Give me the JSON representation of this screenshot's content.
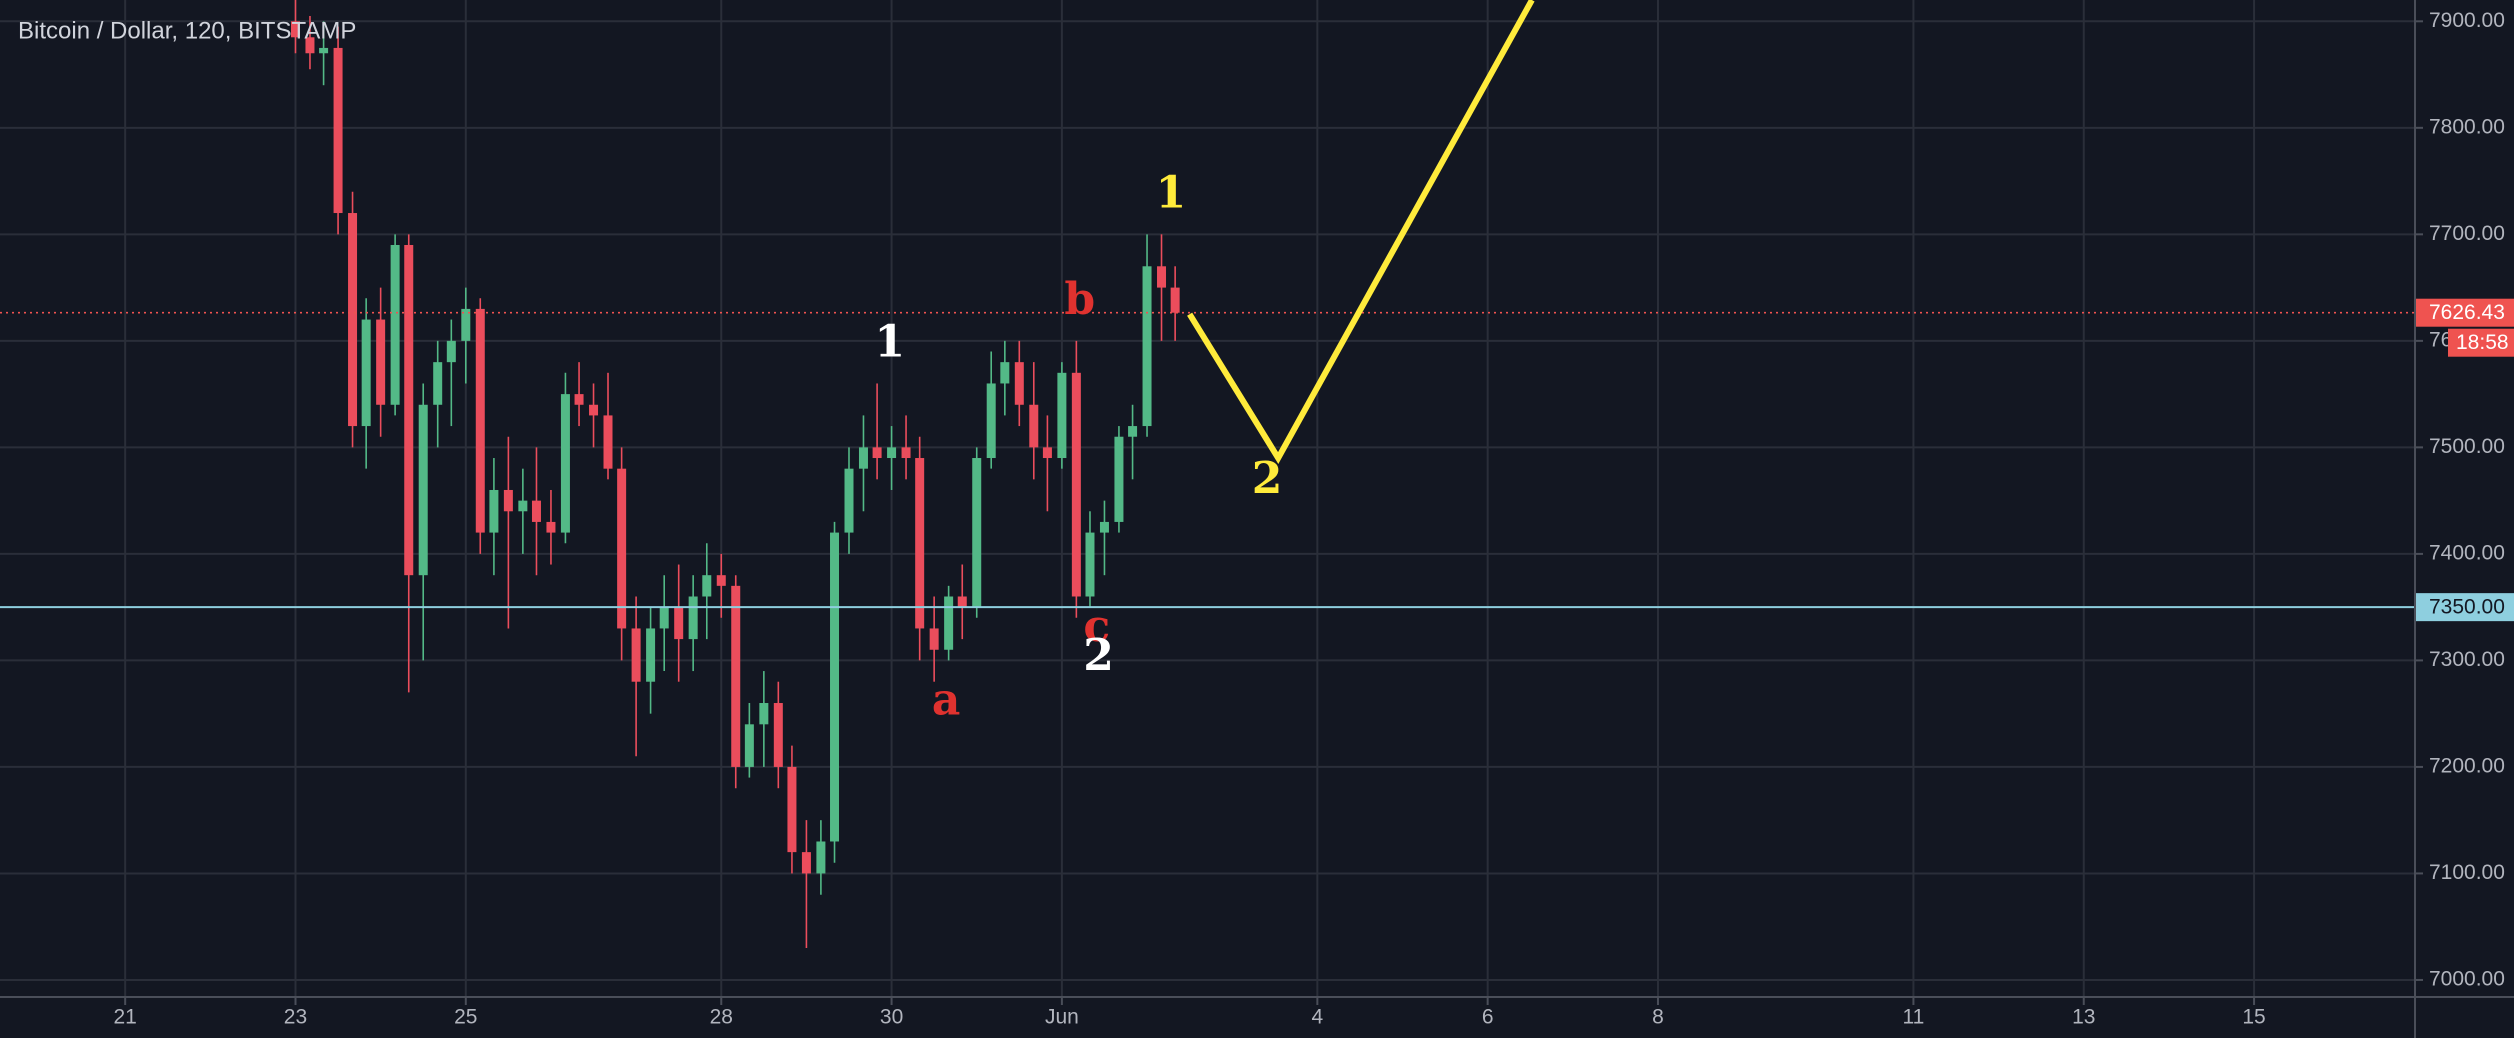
{
  "chart_data": {
    "type": "candlestick",
    "title": "Bitcoin / Dollar, 120, BITSTAMP",
    "up_color": "#53b987",
    "down_color": "#eb4d5c",
    "grid": true,
    "x": [
      23,
      23.17,
      23.33,
      23.5,
      23.67,
      23.83,
      24,
      24.17,
      24.33,
      24.5,
      24.67,
      24.83,
      25,
      25.17,
      25.33,
      25.5,
      25.67,
      25.83,
      26,
      26.17,
      26.33,
      26.5,
      26.67,
      26.83,
      27,
      27.17,
      27.33,
      27.5,
      27.67,
      27.83,
      28,
      28.17,
      28.33,
      28.5,
      28.67,
      28.83,
      29,
      29.17,
      29.33,
      29.5,
      29.67,
      29.83,
      30,
      30.17,
      30.33,
      30.5,
      30.67,
      30.83,
      31,
      31.17,
      31.33,
      31.5,
      31.67,
      31.83,
      32,
      32.17,
      32.33,
      32.5,
      32.67,
      32.83,
      33,
      33.17,
      33.33
    ],
    "open": [
      7900,
      7885,
      7870,
      7875,
      7720,
      7520,
      7620,
      7540,
      7690,
      7380,
      7540,
      7580,
      7600,
      7630,
      7420,
      7460,
      7440,
      7450,
      7430,
      7420,
      7550,
      7540,
      7530,
      7480,
      7330,
      7280,
      7330,
      7350,
      7320,
      7360,
      7380,
      7370,
      7200,
      7240,
      7260,
      7200,
      7120,
      7100,
      7130,
      7420,
      7480,
      7500,
      7490,
      7500,
      7490,
      7330,
      7310,
      7360,
      7350,
      7490,
      7560,
      7580,
      7540,
      7500,
      7490,
      7570,
      7360,
      7420,
      7430,
      7510,
      7520,
      7670,
      7650
    ],
    "high": [
      7935,
      7905,
      7900,
      7895,
      7740,
      7640,
      7650,
      7700,
      7700,
      7560,
      7600,
      7620,
      7650,
      7640,
      7490,
      7510,
      7480,
      7500,
      7460,
      7570,
      7580,
      7560,
      7570,
      7500,
      7360,
      7350,
      7380,
      7390,
      7380,
      7410,
      7400,
      7380,
      7260,
      7290,
      7280,
      7220,
      7150,
      7150,
      7430,
      7500,
      7530,
      7560,
      7520,
      7530,
      7510,
      7360,
      7370,
      7390,
      7500,
      7590,
      7600,
      7600,
      7580,
      7530,
      7580,
      7600,
      7440,
      7450,
      7520,
      7540,
      7700,
      7700,
      7670
    ],
    "low": [
      7870,
      7855,
      7840,
      7700,
      7500,
      7480,
      7510,
      7530,
      7270,
      7300,
      7500,
      7520,
      7560,
      7400,
      7380,
      7330,
      7400,
      7380,
      7390,
      7410,
      7520,
      7500,
      7470,
      7300,
      7210,
      7250,
      7290,
      7280,
      7290,
      7320,
      7340,
      7180,
      7190,
      7200,
      7180,
      7100,
      7030,
      7080,
      7110,
      7400,
      7440,
      7470,
      7460,
      7470,
      7300,
      7280,
      7300,
      7320,
      7340,
      7480,
      7530,
      7520,
      7470,
      7440,
      7480,
      7340,
      7350,
      7380,
      7420,
      7470,
      7510,
      7600,
      7600
    ],
    "close": [
      7885,
      7870,
      7875,
      7720,
      7520,
      7620,
      7540,
      7690,
      7380,
      7540,
      7580,
      7600,
      7630,
      7420,
      7460,
      7440,
      7450,
      7430,
      7420,
      7550,
      7540,
      7530,
      7480,
      7330,
      7280,
      7330,
      7350,
      7320,
      7360,
      7380,
      7370,
      7200,
      7240,
      7260,
      7200,
      7120,
      7100,
      7130,
      7420,
      7480,
      7500,
      7490,
      7500,
      7490,
      7330,
      7310,
      7360,
      7350,
      7490,
      7560,
      7580,
      7540,
      7500,
      7490,
      7570,
      7360,
      7420,
      7430,
      7510,
      7520,
      7670,
      7650,
      7626.43
    ],
    "xlim": [
      19.53,
      47.89
    ],
    "ylim": [
      6984,
      7920
    ],
    "xticks": [
      21,
      23,
      25,
      28,
      30,
      {
        "value": 32,
        "label": "Jun"
      },
      {
        "value": 35,
        "label": "4"
      },
      {
        "value": 37,
        "label": "6"
      },
      {
        "value": 39,
        "label": "8"
      },
      {
        "value": 42,
        "label": "11"
      },
      {
        "value": 44,
        "label": "13"
      },
      {
        "value": 46,
        "label": "15"
      }
    ],
    "yticks": [
      {
        "value": 7000,
        "label": "7000.00"
      },
      {
        "value": 7100,
        "label": "7100.00"
      },
      {
        "value": 7200,
        "label": "7200.00"
      },
      {
        "value": 7300,
        "label": "7300.00"
      },
      {
        "value": 7400,
        "label": "7400.00"
      },
      {
        "value": 7500,
        "label": "7500.00"
      },
      {
        "value": 7600,
        "label": "7600.00"
      },
      {
        "value": 7700,
        "label": "7700.00"
      },
      {
        "value": 7800,
        "label": "7800.00"
      },
      {
        "value": 7900,
        "label": "7900.00"
      }
    ],
    "price_line": {
      "value": 7350,
      "label": "7350.00",
      "color": "#8ecfdf"
    },
    "last_price": {
      "value": 7626.43,
      "countdown": "18:58",
      "color": "#ef5350"
    },
    "projection": {
      "color": "#ffeb3b",
      "x": [
        33.5,
        34.54,
        37.52
      ],
      "values": [
        7625,
        7490,
        7920
      ]
    },
    "annotations": [
      {
        "text": "1",
        "x": 29.98,
        "y": 7596,
        "color": "#ffffff"
      },
      {
        "text": "a",
        "x": 30.64,
        "y": 7260,
        "color": "#e0322f"
      },
      {
        "text": "b",
        "x": 32.21,
        "y": 7636,
        "color": "#e0322f"
      },
      {
        "text": "c",
        "x": 32.41,
        "y": 7329,
        "color": "#e0322f"
      },
      {
        "text": "2",
        "x": 32.43,
        "y": 7302,
        "color": "#ffffff"
      },
      {
        "text": "1",
        "x": 33.28,
        "y": 7736,
        "color": "#ffeb3b"
      },
      {
        "text": "2",
        "x": 34.41,
        "y": 7468,
        "color": "#ffeb3b"
      }
    ]
  }
}
